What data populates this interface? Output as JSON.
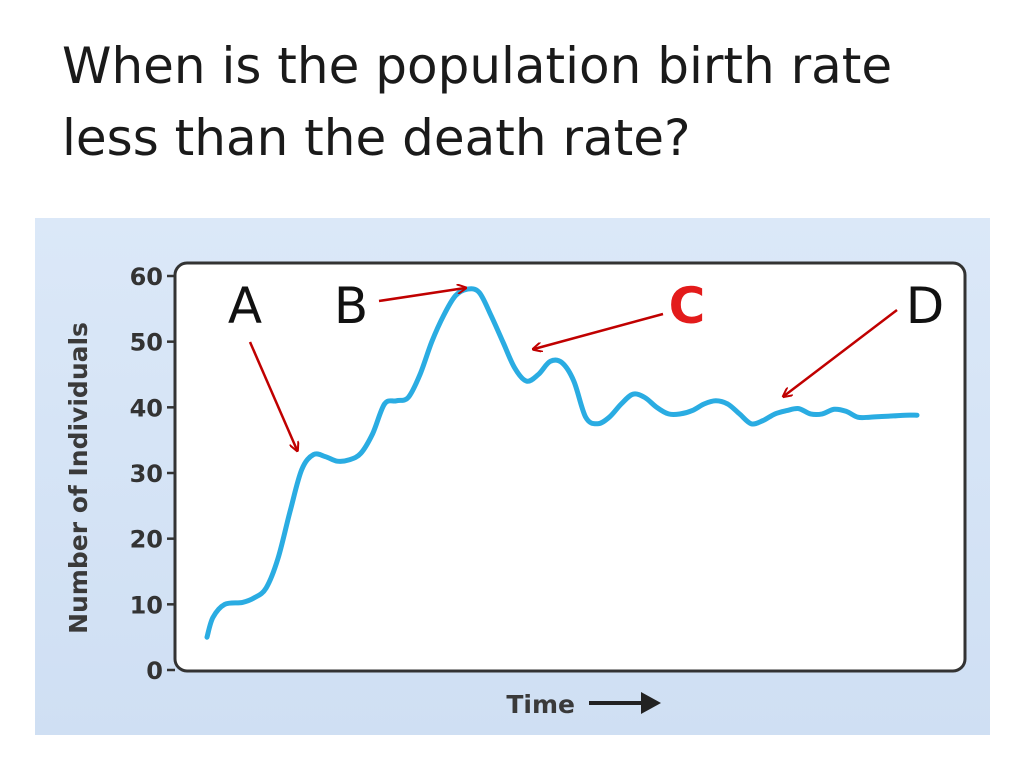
{
  "slide": {
    "title": "When is the population birth rate less than the death rate?"
  },
  "colors": {
    "panel_background": "#d4e3f5",
    "curve": "#2aace2",
    "arrow": "#c00000",
    "highlight_label": "#e31b1b"
  },
  "chart_data": {
    "type": "line",
    "title": "",
    "xlabel": "Time",
    "ylabel": "Number of Individuals",
    "ylim": [
      0,
      60
    ],
    "yticks": [
      "0",
      "10",
      "20",
      "30",
      "40",
      "50",
      "60"
    ],
    "xticks": [],
    "grid": false,
    "series": [
      {
        "x": [
          0,
          0.5,
          1.5,
          3,
          4,
          5,
          6,
          7,
          8,
          9,
          10,
          11,
          12,
          13,
          14,
          15,
          16,
          17,
          18,
          19,
          20,
          21,
          22,
          23,
          24,
          25,
          26,
          27,
          28,
          29,
          30,
          31,
          32,
          33,
          34,
          35,
          36,
          37,
          38,
          39,
          40,
          41,
          42,
          43,
          44,
          45,
          46,
          47,
          48,
          49,
          50,
          51,
          52,
          53,
          54,
          55,
          56,
          57,
          58,
          59,
          60,
          61,
          62,
          63,
          64,
          65,
          66,
          67,
          68,
          69,
          70,
          71,
          72,
          73,
          74,
          75,
          76,
          77,
          78,
          79,
          80,
          81,
          82,
          83,
          84,
          85,
          86,
          87,
          88,
          89,
          90,
          91,
          92,
          93,
          94,
          95,
          96,
          97,
          98,
          99,
          100
        ],
        "y": [
          5,
          8,
          10,
          10.3,
          11,
          12.5,
          17,
          24,
          30.5,
          32.8,
          32.5,
          31.8,
          32,
          33,
          36,
          40.5,
          41,
          41.5,
          45,
          50,
          54,
          57,
          58,
          57.5,
          54,
          50,
          46,
          44,
          45,
          47,
          46.8,
          44,
          38.5,
          37.5,
          38.5,
          40.5,
          42,
          41.5,
          40,
          39,
          39,
          39.5,
          40.5,
          41,
          40.5,
          39,
          37.5,
          38,
          39,
          39.5,
          39.8,
          39,
          39,
          39.7,
          39.4,
          38.5,
          38.5,
          38.6,
          38.7,
          38.8,
          38.8,
          38.8,
          38.8,
          38.8,
          38.8,
          38.8,
          38.8,
          38.8,
          38.8,
          38.8,
          38.8,
          38.8,
          38.8,
          38.8,
          38.8,
          38.8,
          38.8,
          38.8,
          38.8,
          38.8,
          38.8,
          38.8,
          38.8,
          38.8,
          38.8,
          38.8,
          38.8,
          38.8,
          38.8,
          38.8,
          38.8,
          38.8,
          38.8,
          38.8,
          38.8,
          38.8,
          38.8,
          38.8,
          38.8,
          38.8,
          38.8
        ]
      }
    ],
    "annotations": [
      {
        "label": "A",
        "highlight": false
      },
      {
        "label": "B",
        "highlight": false
      },
      {
        "label": "C",
        "highlight": true
      },
      {
        "label": "D",
        "highlight": false
      }
    ]
  }
}
